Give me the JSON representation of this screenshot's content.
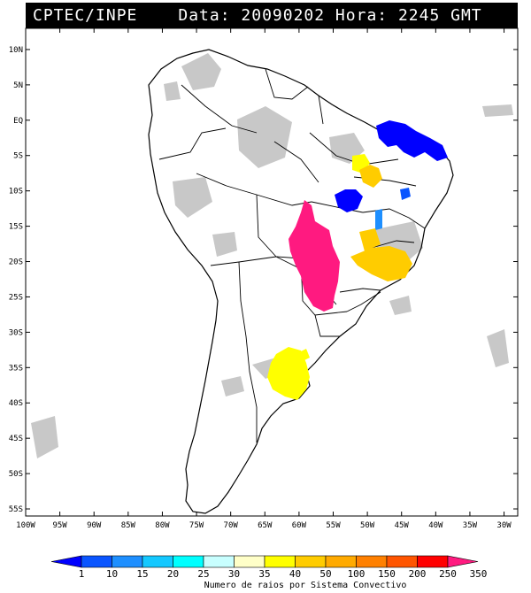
{
  "header": {
    "org": "CPTEC/INPE",
    "datetime": "Data: 20090202 Hora: 2245 GMT"
  },
  "map": {
    "lat_labels": [
      "10N",
      "5N",
      "EQ",
      "5S",
      "10S",
      "15S",
      "20S",
      "25S",
      "30S",
      "35S",
      "40S",
      "45S",
      "50S",
      "55S"
    ],
    "lon_labels": [
      "100W",
      "95W",
      "90W",
      "85W",
      "80W",
      "75W",
      "70W",
      "65W",
      "60W",
      "55W",
      "50W",
      "45W",
      "40W",
      "35W",
      "30W"
    ],
    "lon_range": [
      -100,
      -28
    ],
    "lat_range": [
      -56,
      13
    ],
    "systems": [
      {
        "name": "nordeste-blue-cluster",
        "color": "#0000ff"
      },
      {
        "name": "mato-grosso-magenta-cluster",
        "color": "#ff1a80"
      },
      {
        "name": "argentina-yellow-cluster",
        "color": "#ffff00"
      }
    ]
  },
  "colorbar": {
    "labels": [
      "1",
      "10",
      "15",
      "20",
      "25",
      "30",
      "35",
      "40",
      "50",
      "100",
      "150",
      "200",
      "250",
      "350"
    ],
    "colors": [
      "#0000ff",
      "#0a55ff",
      "#1e8fff",
      "#14c8ff",
      "#00ffff",
      "#c8ffff",
      "#ffffc8",
      "#ffff00",
      "#ffcc00",
      "#ffaa00",
      "#ff8000",
      "#ff5500",
      "#ff0000",
      "#ff1a80"
    ],
    "title": "Numero de raios por Sistema Convectivo"
  }
}
